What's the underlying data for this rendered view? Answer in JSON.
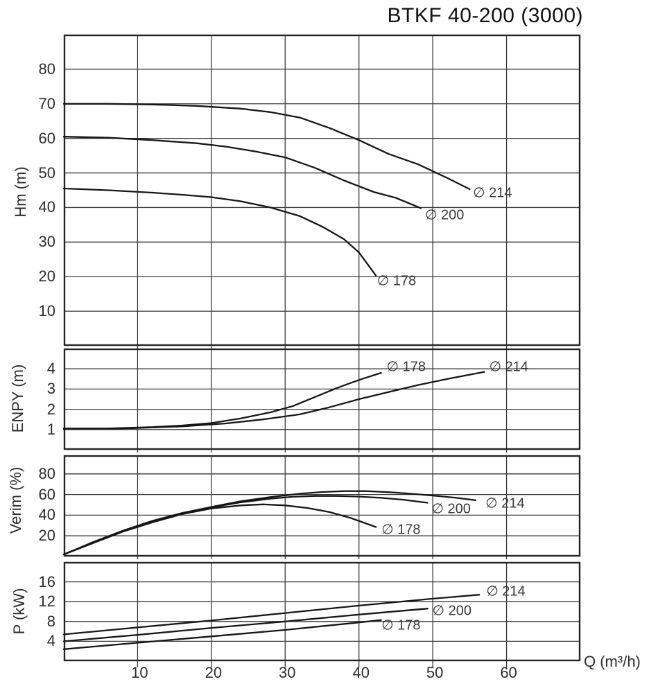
{
  "colors": {
    "ink": "#161616",
    "grid": "#3a3a3a",
    "border": "#242424",
    "text": "#2d2d2d"
  },
  "chart_data": {
    "type": "line",
    "title": "BTKF 40-200 (3000)",
    "xlabel": "Q (m³/h)",
    "xlim": [
      0,
      70
    ],
    "x_ticks": [
      10,
      20,
      30,
      40,
      50,
      60
    ],
    "grid": true,
    "plots": [
      {
        "id": "head",
        "ylabel": "Hm (m)",
        "ylim": [
          0,
          90
        ],
        "yticks": [
          10,
          20,
          30,
          40,
          50,
          60,
          70,
          80
        ],
        "series": [
          {
            "name": "∅ 214",
            "points": [
              [
                0,
                70
              ],
              [
                6,
                70
              ],
              [
                12,
                69.8
              ],
              [
                18,
                69.4
              ],
              [
                24,
                68.6
              ],
              [
                28,
                67.6
              ],
              [
                32,
                66
              ],
              [
                36,
                63
              ],
              [
                40,
                59.5
              ],
              [
                44,
                55.5
              ],
              [
                48,
                52.5
              ],
              [
                52,
                48.5
              ],
              [
                55,
                45.3
              ]
            ],
            "label_at": [
              58.1,
              44.2
            ]
          },
          {
            "name": "∅ 200",
            "points": [
              [
                0,
                60.5
              ],
              [
                6,
                60.2
              ],
              [
                12,
                59.5
              ],
              [
                18,
                58.6
              ],
              [
                22,
                57.6
              ],
              [
                26,
                56.2
              ],
              [
                30,
                54.5
              ],
              [
                34,
                51.5
              ],
              [
                38,
                47.8
              ],
              [
                42,
                44.5
              ],
              [
                45,
                42.8
              ],
              [
                48.4,
                39.8
              ]
            ],
            "label_at": [
              51.6,
              37.9
            ]
          },
          {
            "name": "∅ 178",
            "points": [
              [
                0,
                45.5
              ],
              [
                6,
                45
              ],
              [
                12,
                44.3
              ],
              [
                16,
                43.7
              ],
              [
                20,
                43
              ],
              [
                24,
                41.8
              ],
              [
                28,
                40
              ],
              [
                32,
                37.5
              ],
              [
                35,
                34.5
              ],
              [
                38,
                30.8
              ],
              [
                40,
                27
              ],
              [
                42.3,
                20.3
              ]
            ],
            "label_at": [
              45.1,
              18.9
            ]
          }
        ]
      },
      {
        "id": "npsh",
        "ylabel": "ENPY (m)",
        "ylim": [
          0,
          5
        ],
        "yticks": [
          1,
          2,
          3,
          4
        ],
        "series": [
          {
            "name": "∅ 178",
            "points": [
              [
                0,
                1.05
              ],
              [
                6,
                1.05
              ],
              [
                12,
                1.12
              ],
              [
                16,
                1.2
              ],
              [
                20,
                1.32
              ],
              [
                24,
                1.55
              ],
              [
                28,
                1.85
              ],
              [
                31,
                2.15
              ],
              [
                34,
                2.6
              ],
              [
                37,
                3.05
              ],
              [
                40,
                3.45
              ],
              [
                43,
                3.8
              ]
            ],
            "label_at": [
              46.4,
              4.1
            ]
          },
          {
            "name": "∅ 214",
            "points": [
              [
                0,
                1.02
              ],
              [
                8,
                1.05
              ],
              [
                16,
                1.15
              ],
              [
                22,
                1.3
              ],
              [
                27,
                1.5
              ],
              [
                32,
                1.75
              ],
              [
                36,
                2.1
              ],
              [
                40,
                2.5
              ],
              [
                44,
                2.85
              ],
              [
                48,
                3.2
              ],
              [
                52,
                3.5
              ],
              [
                57,
                3.85
              ]
            ],
            "label_at": [
              60.3,
              4.1
            ]
          }
        ]
      },
      {
        "id": "eff",
        "ylabel": "Verim (%)",
        "ylim": [
          0,
          98
        ],
        "yticks": [
          20,
          40,
          60,
          80
        ],
        "series": [
          {
            "name": "∅ 214",
            "points": [
              [
                0,
                2
              ],
              [
                4,
                14
              ],
              [
                8,
                25
              ],
              [
                12,
                34.5
              ],
              [
                16,
                42
              ],
              [
                20,
                48
              ],
              [
                24,
                53.5
              ],
              [
                28,
                57.5
              ],
              [
                32,
                60.8
              ],
              [
                35,
                62.4
              ],
              [
                38,
                63.3
              ],
              [
                41,
                63.3
              ],
              [
                44,
                62.3
              ],
              [
                47,
                60.8
              ],
              [
                50,
                59
              ],
              [
                53,
                57
              ],
              [
                55.8,
                54.5
              ]
            ],
            "label_at": [
              59.8,
              51.7
            ]
          },
          {
            "name": "∅ 200",
            "points": [
              [
                0,
                2
              ],
              [
                4,
                13.5
              ],
              [
                8,
                24.5
              ],
              [
                12,
                34
              ],
              [
                16,
                41.5
              ],
              [
                20,
                47.5
              ],
              [
                24,
                52.5
              ],
              [
                28,
                56
              ],
              [
                31,
                57.8
              ],
              [
                34,
                58.6
              ],
              [
                37,
                58.6
              ],
              [
                40,
                58
              ],
              [
                43,
                56.8
              ],
              [
                46,
                55
              ],
              [
                49.3,
                52
              ]
            ],
            "label_at": [
              52.5,
              46.3
            ]
          },
          {
            "name": "∅ 178",
            "points": [
              [
                0,
                2
              ],
              [
                4,
                13
              ],
              [
                8,
                24
              ],
              [
                12,
                33
              ],
              [
                16,
                41
              ],
              [
                20,
                46.5
              ],
              [
                24,
                49.5
              ],
              [
                27,
                50.5
              ],
              [
                30,
                49.5
              ],
              [
                33,
                47
              ],
              [
                36,
                43
              ],
              [
                39,
                37
              ],
              [
                42.3,
                28.5
              ]
            ],
            "label_at": [
              45.7,
              26
            ]
          }
        ]
      },
      {
        "id": "power",
        "ylabel": "P (kW)",
        "ylim": [
          0,
          20
        ],
        "yticks": [
          4,
          8,
          12,
          16
        ],
        "series": [
          {
            "name": "∅ 214",
            "points": [
              [
                0,
                5.4
              ],
              [
                10,
                6.8
              ],
              [
                20,
                8.2
              ],
              [
                30,
                9.7
              ],
              [
                40,
                11.2
              ],
              [
                50,
                12.6
              ],
              [
                56.3,
                13.4
              ]
            ],
            "label_at": [
              59.9,
              14.1
            ]
          },
          {
            "name": "∅ 200",
            "points": [
              [
                0,
                4.0
              ],
              [
                10,
                5.3
              ],
              [
                20,
                6.7
              ],
              [
                30,
                8.0
              ],
              [
                40,
                9.4
              ],
              [
                49.3,
                10.6
              ]
            ],
            "label_at": [
              52.6,
              10.2
            ]
          },
          {
            "name": "∅ 178",
            "points": [
              [
                0,
                2.4
              ],
              [
                10,
                3.7
              ],
              [
                20,
                5.0
              ],
              [
                30,
                6.3
              ],
              [
                40,
                7.8
              ],
              [
                43,
                8.3
              ]
            ],
            "label_at": [
              45.7,
              7.3
            ]
          }
        ]
      }
    ]
  }
}
